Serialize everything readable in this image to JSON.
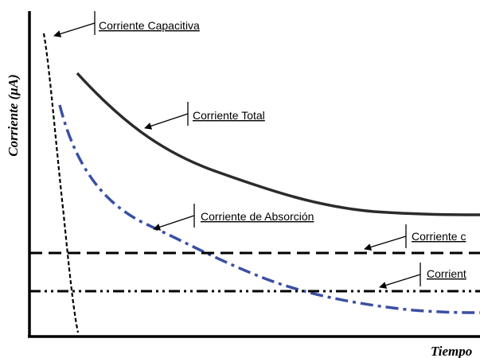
{
  "axes": {
    "y_label": "Corriente (μA)",
    "x_label": "Tiempo"
  },
  "curves": {
    "capacitive": {
      "label": "Corriente Capacitiva",
      "color": "#000000",
      "style": "dashed"
    },
    "total": {
      "label": "Corriente Total",
      "color": "#2b2b2b",
      "style": "solid"
    },
    "absorption": {
      "label": "Corriente de Absorción",
      "color": "#3a4fa3",
      "style": "dash-dot"
    },
    "conduction": {
      "label": "Corriente c",
      "color": "#000000",
      "style": "dashed"
    },
    "leakage": {
      "label": "Corrient",
      "color": "#000000",
      "style": "dash-dot-dot"
    }
  }
}
